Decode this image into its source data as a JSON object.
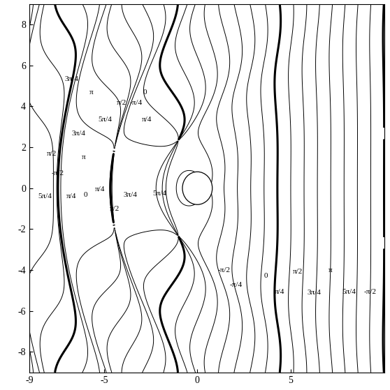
{
  "chart_data": {
    "type": "contour",
    "xlim": [
      -9,
      10
    ],
    "ylim": [
      -9,
      9
    ],
    "xticks": [
      -9,
      -5,
      0,
      5
    ],
    "yticks": [
      -8,
      -6,
      -4,
      -2,
      0,
      2,
      4,
      6,
      8
    ],
    "cylinder_radius": 0.8,
    "levels": [
      {
        "value": -1.5708,
        "label": "-π/2"
      },
      {
        "value": -0.7854,
        "label": "-π/4"
      },
      {
        "value": 0,
        "label": "0"
      },
      {
        "value": 0.7854,
        "label": "π/4"
      },
      {
        "value": 1.5708,
        "label": "π/2"
      },
      {
        "value": 2.3562,
        "label": "3π/4"
      },
      {
        "value": 3.1416,
        "label": "π"
      },
      {
        "value": 3.927,
        "label": "5π/4"
      }
    ],
    "annotations": [
      {
        "text": "-π/2",
        "x": 1.42,
        "y": -4.0
      },
      {
        "text": "-π/4",
        "x": 2.06,
        "y": -4.73
      },
      {
        "text": "0",
        "x": 3.67,
        "y": -4.27
      },
      {
        "text": "π/4",
        "x": 4.42,
        "y": -5.07
      },
      {
        "text": "π/2",
        "x": 5.36,
        "y": -4.07
      },
      {
        "text": "3π/4",
        "x": 6.25,
        "y": -5.1
      },
      {
        "text": "π",
        "x": 7.12,
        "y": -4.0
      },
      {
        "text": "5π/4",
        "x": 8.13,
        "y": -5.07
      },
      {
        "text": "-π/2",
        "x": 9.25,
        "y": -5.07
      },
      {
        "text": "5π/4",
        "x": -8.16,
        "y": -0.4
      },
      {
        "text": "-π/2",
        "x": -7.49,
        "y": 0.73
      },
      {
        "text": "π/4",
        "x": -6.74,
        "y": -0.4
      },
      {
        "text": "0",
        "x": -5.99,
        "y": -0.33
      },
      {
        "text": "π/4",
        "x": -5.21,
        "y": -0.07
      },
      {
        "text": "π/2",
        "x": -4.42,
        "y": -1.0
      },
      {
        "text": "3π/4",
        "x": -3.6,
        "y": -0.33
      },
      {
        "text": "5π/4",
        "x": -2.02,
        "y": -0.27
      },
      {
        "text": "3π/4",
        "x": -6.37,
        "y": 2.67
      },
      {
        "text": "π",
        "x": -6.1,
        "y": 1.5
      },
      {
        "text": "5π/4",
        "x": -4.94,
        "y": 3.33
      },
      {
        "text": "π/2",
        "x": -4.04,
        "y": 4.17
      },
      {
        "text": "-π/4",
        "x": -3.3,
        "y": 4.17
      },
      {
        "text": "0",
        "x": -2.81,
        "y": 4.67
      },
      {
        "text": "π/4",
        "x": -2.7,
        "y": 3.33
      },
      {
        "text": "π",
        "x": -5.69,
        "y": 4.67
      },
      {
        "text": "3π/4",
        "x": -6.74,
        "y": 5.33
      },
      {
        "text": "π/2",
        "x": -7.79,
        "y": 1.67
      }
    ]
  }
}
